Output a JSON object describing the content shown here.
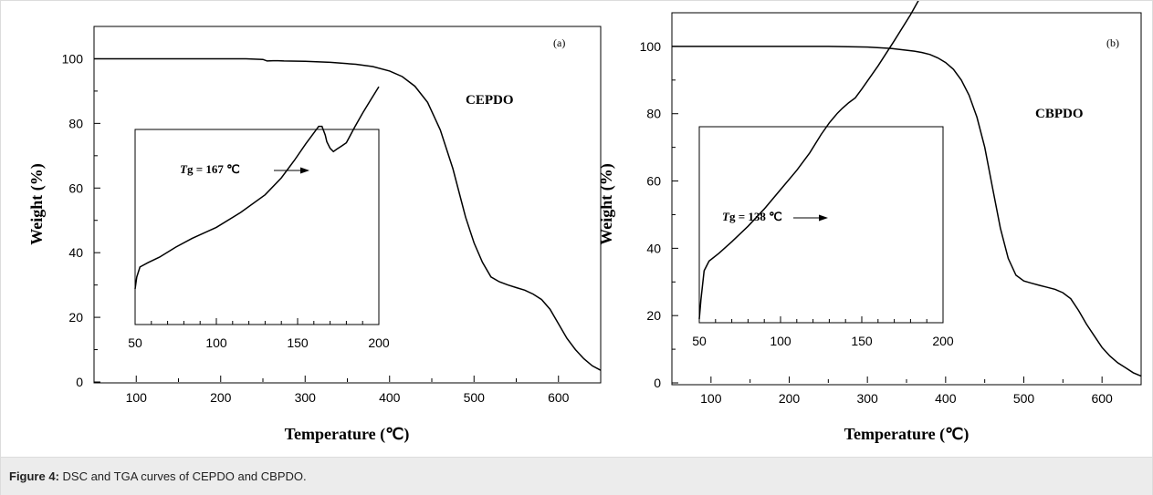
{
  "caption": {
    "prefix": "Figure 4:",
    "text": " DSC and TGA curves of CEPDO and CBPDO."
  },
  "chart_data": [
    {
      "type": "line",
      "panel_label": "(a)",
      "series_label": "CEPDO",
      "xlabel": "Temperature (℃)",
      "ylabel": "Weight (%)",
      "xlim": [
        50,
        650
      ],
      "ylim": [
        0,
        110
      ],
      "xticks": [
        100,
        200,
        300,
        400,
        500,
        600
      ],
      "yticks": [
        0,
        20,
        40,
        60,
        80,
        100
      ],
      "series": [
        {
          "x": [
            50,
            100,
            150,
            200,
            230,
            250,
            255,
            262,
            268,
            275,
            300,
            330,
            360,
            380,
            400,
            415,
            430,
            445,
            460,
            475,
            490,
            500,
            510,
            520,
            530,
            540,
            550,
            560,
            570,
            580,
            590,
            600,
            610,
            620,
            630,
            640,
            650
          ],
          "y": [
            100,
            100,
            100,
            100,
            100,
            99.8,
            99.3,
            99.4,
            99.4,
            99.3,
            99.2,
            98.9,
            98.3,
            97.6,
            96.2,
            94.5,
            91.5,
            86.5,
            78,
            66,
            51,
            43,
            37,
            32.5,
            31,
            30,
            29.2,
            28.4,
            27.2,
            25.5,
            22.5,
            18,
            13.5,
            10,
            7.2,
            5,
            3.6
          ]
        }
      ],
      "inset": {
        "type": "line",
        "xlim": [
          50,
          200
        ],
        "xticks": [
          50,
          100,
          150,
          200
        ],
        "annotation": {
          "prefix": "T",
          "text": "g = 167 ℃",
          "value": 167
        },
        "series": [
          {
            "x": [
              50,
              51,
              53,
              58,
              65,
              75,
              85,
              100,
              115,
              130,
              140,
              148,
              155,
              160,
              163,
              165,
              167,
              168,
              170,
              172,
              174,
              177,
              180,
              185,
              190,
              195,
              200
            ],
            "y": [
              0.0,
              0.08,
              0.147,
              0.176,
              0.213,
              0.28,
              0.338,
              0.412,
              0.512,
              0.63,
              0.743,
              0.86,
              0.971,
              1.044,
              1.088,
              1.088,
              1.029,
              0.985,
              0.941,
              0.919,
              0.934,
              0.956,
              0.978,
              1.08,
              1.176,
              1.265,
              1.353
            ]
          }
        ]
      }
    },
    {
      "type": "line",
      "panel_label": "(b)",
      "series_label": "CBPDO",
      "xlabel": "Temperature (℃)",
      "ylabel": "Weight (%)",
      "xlim": [
        50,
        650
      ],
      "ylim": [
        0,
        110
      ],
      "xticks": [
        100,
        200,
        300,
        400,
        500,
        600
      ],
      "yticks": [
        0,
        20,
        40,
        60,
        80,
        100
      ],
      "series": [
        {
          "x": [
            50,
            100,
            150,
            200,
            250,
            300,
            330,
            360,
            370,
            380,
            390,
            400,
            410,
            420,
            430,
            440,
            450,
            460,
            470,
            480,
            490,
            500,
            510,
            520,
            530,
            540,
            550,
            560,
            570,
            580,
            590,
            600,
            610,
            620,
            630,
            640,
            650
          ],
          "y": [
            100,
            100,
            100,
            100,
            100,
            99.8,
            99.4,
            98.6,
            98.2,
            97.6,
            96.6,
            95.2,
            93.2,
            90,
            85.5,
            79,
            70,
            58,
            46,
            37,
            32,
            30.3,
            29.6,
            29,
            28.4,
            27.8,
            26.8,
            25,
            21.5,
            17.5,
            14,
            10.5,
            8,
            6,
            4.5,
            3,
            2
          ]
        }
      ],
      "inset": {
        "type": "line",
        "xlim": [
          50,
          200
        ],
        "xticks": [
          50,
          100,
          150,
          200
        ],
        "annotation": {
          "prefix": "T",
          "text": "g = 138 ℃",
          "value": 138
        },
        "series": [
          {
            "x": [
              50,
              51,
              53,
              56,
              62,
              70,
              80,
              90,
              100,
              110,
              118,
              125,
              130,
              135,
              138,
              142,
              146,
              150,
              160,
              170,
              180,
              190,
              195
            ],
            "y": [
              0.0,
              0.1,
              0.25,
              0.3,
              0.34,
              0.4,
              0.48,
              0.57,
              0.67,
              0.77,
              0.86,
              0.955,
              1.015,
              1.065,
              1.09,
              1.12,
              1.145,
              1.19,
              1.31,
              1.44,
              1.575,
              1.725,
              1.8
            ]
          }
        ]
      }
    }
  ]
}
